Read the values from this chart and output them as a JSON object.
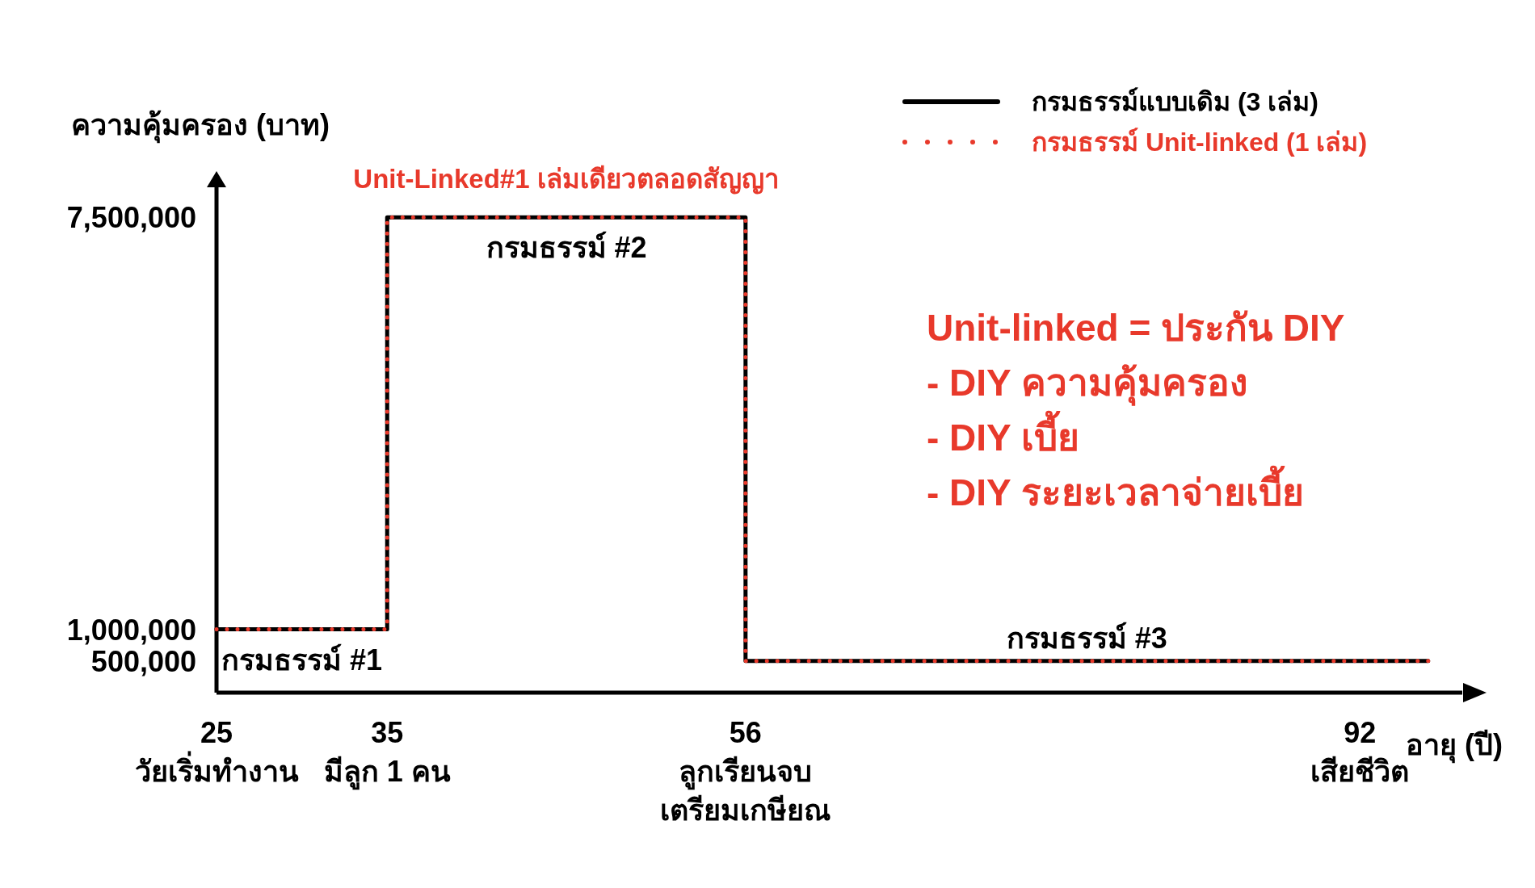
{
  "chart_data": {
    "type": "step",
    "xlabel": "อายุ (ปี)",
    "ylabel": "ความคุ้มครอง (บาท)",
    "xlim": [
      25,
      98
    ],
    "ylim": [
      0,
      8000000
    ],
    "xticks": [
      {
        "value": 25,
        "label": "25\nวัยเริ่มทำงาน"
      },
      {
        "value": 35,
        "label": "35\nมีลูก 1 คน"
      },
      {
        "value": 56,
        "label": "56\nลูกเรียนจบ\nเตรียมเกษียณ"
      },
      {
        "value": 92,
        "label": "92\nเสียชีวิต"
      }
    ],
    "yticks": [
      {
        "value": 500000,
        "label": "500,000"
      },
      {
        "value": 1000000,
        "label": "1,000,000"
      },
      {
        "value": 7500000,
        "label": "7,500,000"
      }
    ],
    "x": [
      25,
      35,
      56,
      96
    ],
    "series": [
      {
        "name": "กรมธรรม์แบบเดิม (3 เล่ม)",
        "color": "#000000",
        "line_style": "solid",
        "values": [
          1000000,
          7500000,
          500000,
          500000
        ]
      },
      {
        "name": "กรมธรรม์ Unit-linked (1 เล่ม)",
        "color": "#e8392b",
        "line_style": "dotted",
        "values": [
          1000000,
          7500000,
          500000,
          500000
        ]
      }
    ],
    "annotations": [
      {
        "text": "กรมธรรม์ #1",
        "x": 30,
        "y": 1000000
      },
      {
        "text": "กรมธรรม์ #2",
        "x": 45.5,
        "y": 7500000
      },
      {
        "text": "กรมธรรม์ #3",
        "x": 76,
        "y": 500000
      },
      {
        "text": "Unit-Linked#1 เล่มเดียวตลอดสัญญา",
        "x": 45.5,
        "y": 7500000
      },
      "Unit-linked = ประกัน DIY\n-  DIY ความคุ้มครอง\n-  DIY เบี้ย\n-  DIY ระยะเวลาจ่ายเบี้ย"
    ],
    "legend": "top right"
  }
}
